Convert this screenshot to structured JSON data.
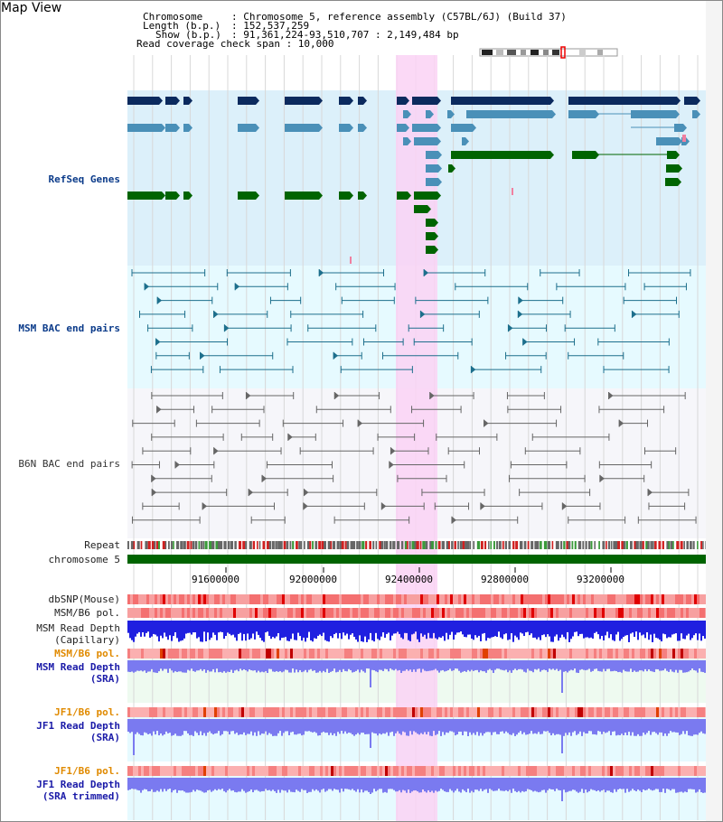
{
  "title": "Map View",
  "header": {
    "chromosome_key": "Chromosome",
    "chromosome_val": ": Chromosome 5, reference assembly (C57BL/6J) (Build 37)",
    "length_key": "Length (b.p.)",
    "length_val": ": 152,537,259",
    "show_key": "Show (b.p.)",
    "show_val": ": 91,361,224-93,510,707 : 2,149,484 bp",
    "coverage": "Read coverage check span : 10,000"
  },
  "tracks": {
    "refseq": "RefSeq Genes",
    "msm_bac": "MSM BAC end pairs",
    "b6n_bac": "B6N BAC end pairs",
    "repeat": "Repeat",
    "chromosome": "chromosome 5",
    "dbsnp": "dbSNP(Mouse)",
    "msm_b6_pol_1": "MSM/B6 pol.",
    "msm_read_depth_cap": "MSM Read Depth\n(Capillary)",
    "msm_b6_pol_2": "MSM/B6 pol.",
    "msm_read_depth_sra": "MSM Read Depth\n(SRA)",
    "jf1_b6_pol_1": "JF1/B6 pol.",
    "jf1_read_depth_sra": "JF1 Read Depth\n(SRA)",
    "jf1_b6_pol_2": "JF1/B6 pol.",
    "jf1_read_depth_trim": "JF1 Read Depth\n(SRA trimmed)"
  },
  "axis_ticks": [
    "91600000",
    "92000000",
    "92400000",
    "92800000",
    "93200000"
  ],
  "colors": {
    "refseq_bg": "#dcf0fa",
    "msm_bac_bg": "#e6faff",
    "b6n_bg": "#f6f6fa",
    "highlight": "#fad2f5",
    "gene_dark": "#0b2a5e",
    "gene_mid": "#4a90b8",
    "gene_green": "#006400",
    "msm_line": "#1d6f8c",
    "b6n_line": "#666666",
    "chrom_green": "#006400",
    "read_depth_blue": "#2020e0"
  }
}
